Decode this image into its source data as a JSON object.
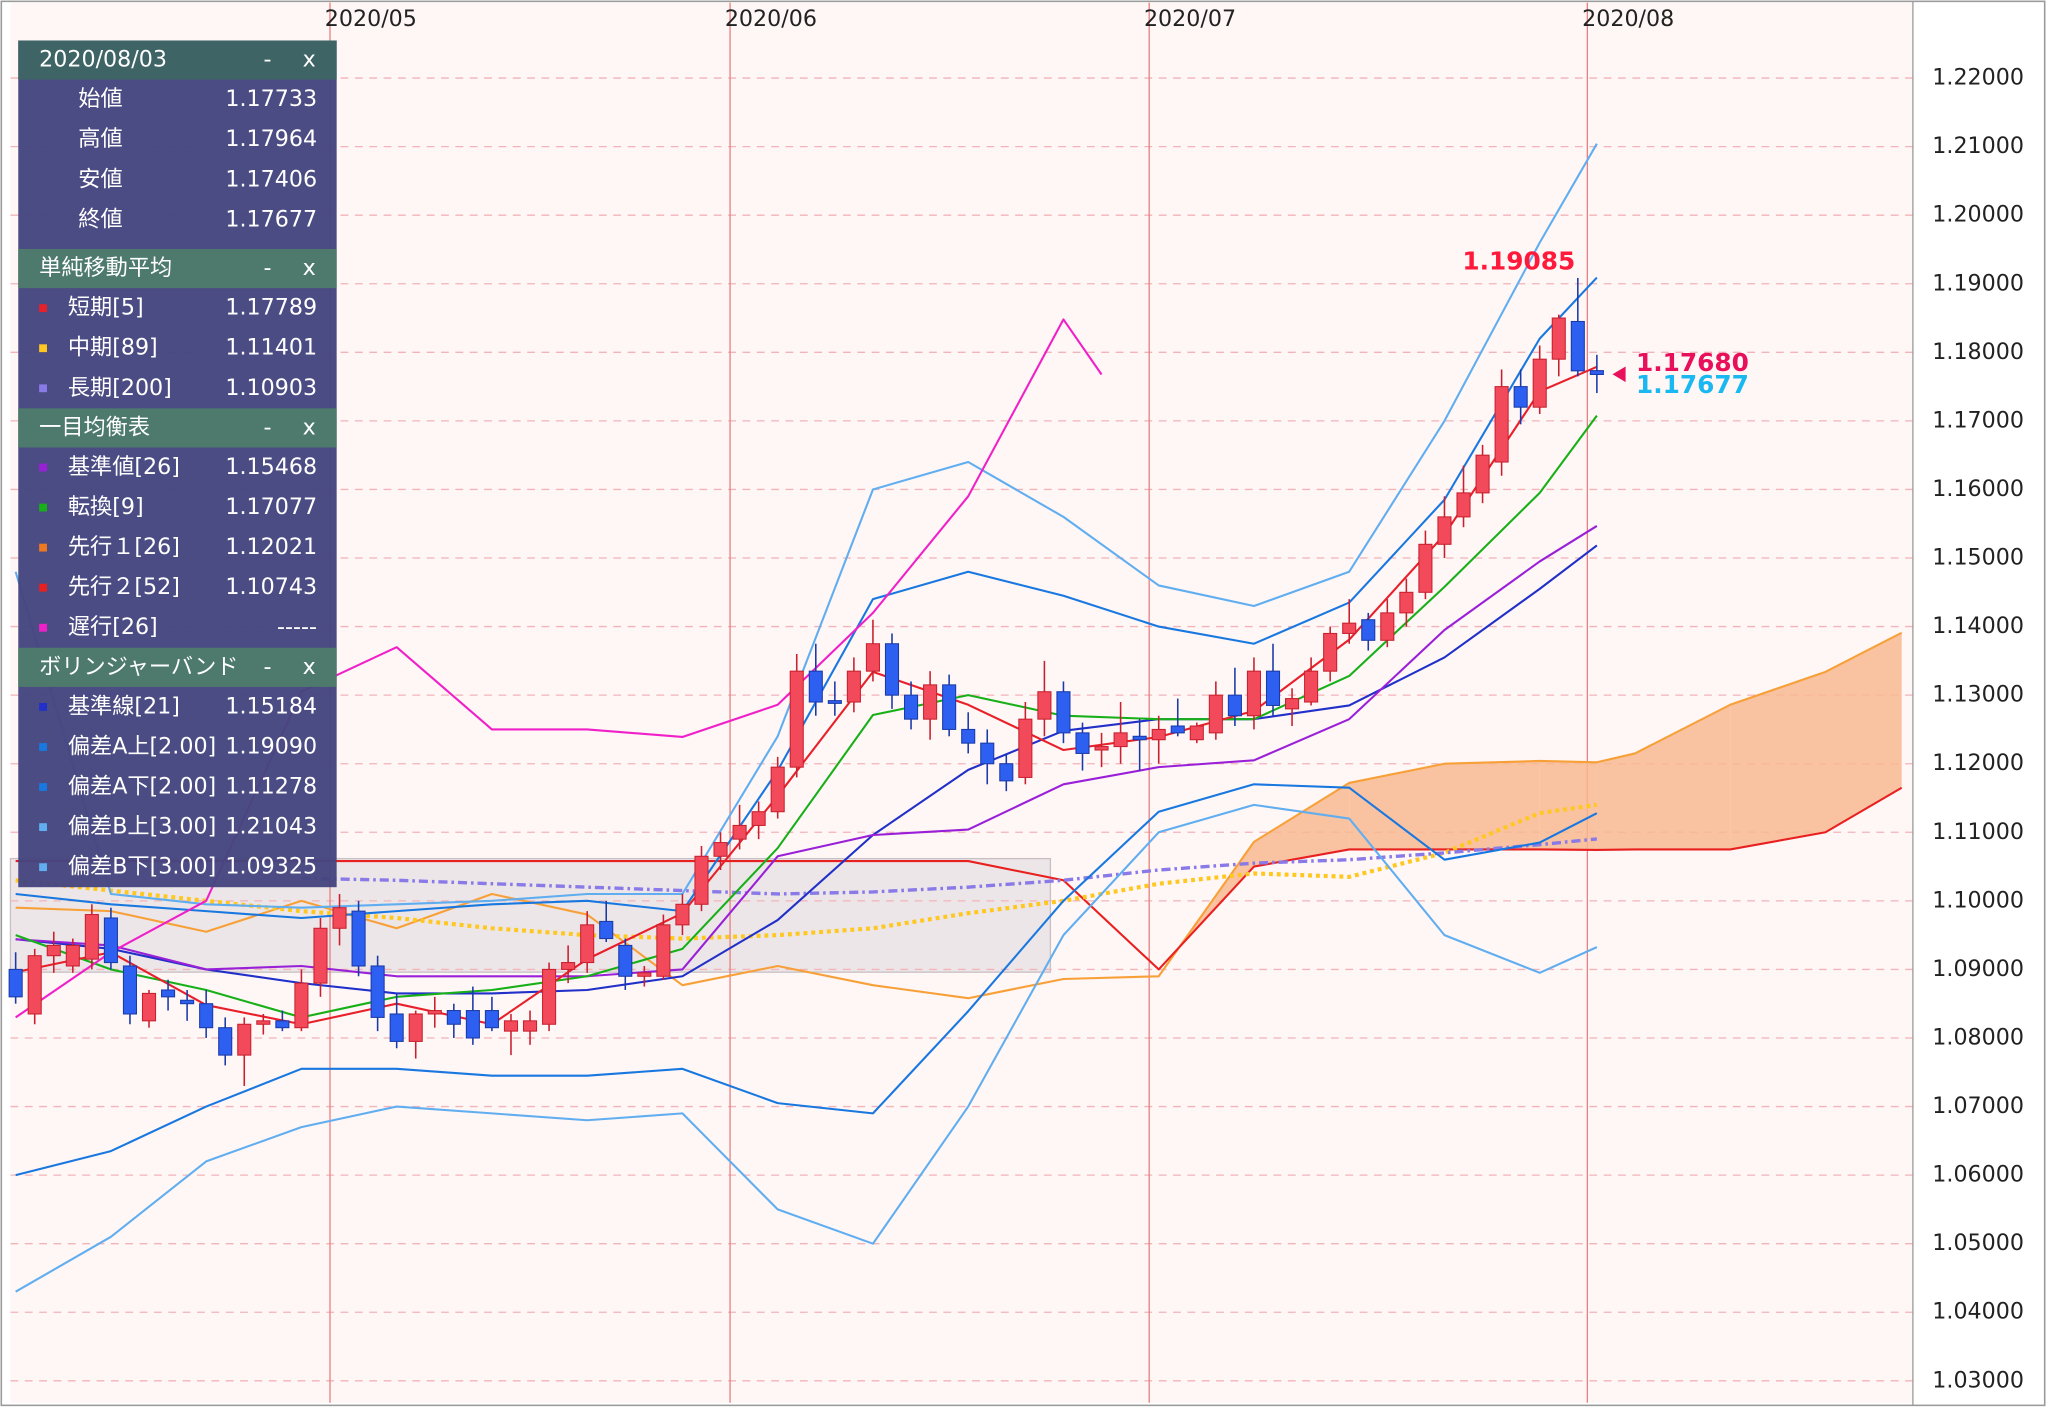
{
  "chart_data": {
    "type": "candlestick",
    "categories": [
      null,
      null,
      null,
      null,
      null,
      null,
      null,
      null,
      null,
      null,
      null,
      null,
      null,
      null,
      null,
      null,
      null,
      "2020/05",
      null,
      null,
      null,
      null,
      null,
      null,
      null,
      null,
      null,
      null,
      null,
      null,
      null,
      null,
      null,
      null,
      null,
      null,
      null,
      null,
      "2020/06",
      null,
      null,
      null,
      null,
      null,
      null,
      null,
      null,
      null,
      null,
      null,
      null,
      null,
      null,
      null,
      null,
      null,
      null,
      null,
      null,
      null,
      "2020/07",
      null,
      null,
      null,
      null,
      null,
      null,
      null,
      null,
      null,
      null,
      null,
      null,
      null,
      null,
      null,
      null,
      null,
      null,
      null,
      null,
      null,
      null,
      "2020/08"
    ],
    "open": [
      1.09,
      1.0835,
      1.092,
      1.0905,
      1.0915,
      1.0975,
      1.0905,
      1.0825,
      1.087,
      1.0855,
      1.085,
      1.0815,
      1.0775,
      1.082,
      1.0825,
      1.0815,
      1.088,
      1.096,
      1.0985,
      1.0905,
      1.0835,
      1.0795,
      1.0835,
      1.084,
      1.084,
      1.084,
      1.081,
      1.081,
      1.082,
      1.09,
      1.091,
      1.097,
      1.0935,
      1.089,
      1.089,
      1.0965,
      1.0995,
      1.1065,
      1.109,
      1.111,
      1.113,
      1.1195,
      1.1335,
      1.1292,
      1.129,
      1.1335,
      1.1375,
      1.13,
      1.1265,
      1.1315,
      1.125,
      1.123,
      1.12,
      1.118,
      1.1265,
      1.1305,
      1.1245,
      1.122,
      1.1225,
      1.124,
      1.1235,
      1.1255,
      1.1235,
      1.1245,
      1.13,
      1.127,
      1.1335,
      1.128,
      1.129,
      1.1335,
      1.139,
      1.141,
      1.138,
      1.142,
      1.145,
      1.152,
      1.156,
      1.1595,
      1.164,
      1.175,
      1.172,
      1.179,
      1.1845,
      1.17733
    ],
    "high": [
      1.0925,
      1.093,
      1.0955,
      1.0945,
      1.0995,
      1.099,
      1.092,
      1.087,
      1.0885,
      1.087,
      1.087,
      1.083,
      1.083,
      1.0835,
      1.084,
      1.09,
      1.0975,
      1.101,
      1.1,
      1.092,
      1.0865,
      1.084,
      1.086,
      1.085,
      1.0875,
      1.086,
      1.0835,
      1.084,
      1.091,
      1.0935,
      1.0985,
      1.1,
      1.0945,
      1.0905,
      1.098,
      1.101,
      1.108,
      1.11,
      1.114,
      1.1145,
      1.121,
      1.136,
      1.1375,
      1.132,
      1.1355,
      1.141,
      1.139,
      1.132,
      1.1335,
      1.133,
      1.1275,
      1.125,
      1.1215,
      1.129,
      1.135,
      1.132,
      1.126,
      1.1245,
      1.129,
      1.1265,
      1.127,
      1.1295,
      1.126,
      1.132,
      1.134,
      1.1355,
      1.1375,
      1.131,
      1.1355,
      1.14,
      1.144,
      1.142,
      1.144,
      1.147,
      1.154,
      1.159,
      1.1635,
      1.1665,
      1.1775,
      1.1775,
      1.181,
      1.1855,
      1.19085,
      1.17964
    ],
    "low": [
      1.085,
      1.082,
      1.0895,
      1.0895,
      1.09,
      1.09,
      1.082,
      1.0815,
      1.084,
      1.0825,
      1.08,
      1.076,
      1.073,
      1.0805,
      1.081,
      1.081,
      1.086,
      1.0935,
      1.089,
      1.081,
      1.0785,
      1.077,
      1.0815,
      1.08,
      1.079,
      1.081,
      1.0775,
      1.079,
      1.081,
      1.088,
      1.0895,
      1.094,
      1.087,
      1.0875,
      1.0885,
      1.095,
      1.0985,
      1.1045,
      1.1075,
      1.109,
      1.112,
      1.118,
      1.127,
      1.127,
      1.1275,
      1.132,
      1.128,
      1.125,
      1.1235,
      1.124,
      1.1215,
      1.117,
      1.116,
      1.117,
      1.124,
      1.123,
      1.119,
      1.1195,
      1.12,
      1.119,
      1.12,
      1.124,
      1.123,
      1.1235,
      1.1255,
      1.125,
      1.127,
      1.1255,
      1.1285,
      1.132,
      1.1375,
      1.1365,
      1.137,
      1.14,
      1.144,
      1.15,
      1.1545,
      1.158,
      1.162,
      1.1695,
      1.171,
      1.1765,
      1.1765,
      1.17406
    ],
    "close": [
      1.086,
      1.092,
      1.0935,
      1.0935,
      1.098,
      1.091,
      1.0835,
      1.0865,
      1.086,
      1.085,
      1.0815,
      1.0775,
      1.082,
      1.0825,
      1.0815,
      1.088,
      1.096,
      1.099,
      1.0905,
      1.083,
      1.0795,
      1.0835,
      1.084,
      1.082,
      1.08,
      1.0815,
      1.0825,
      1.0825,
      1.09,
      1.091,
      1.0965,
      1.0945,
      1.089,
      1.0895,
      1.0965,
      1.0995,
      1.1065,
      1.1085,
      1.111,
      1.113,
      1.1195,
      1.1335,
      1.129,
      1.1288,
      1.1335,
      1.1375,
      1.13,
      1.1265,
      1.1315,
      1.125,
      1.123,
      1.12,
      1.1175,
      1.1265,
      1.1305,
      1.1245,
      1.1215,
      1.1225,
      1.1245,
      1.1235,
      1.125,
      1.1245,
      1.1255,
      1.13,
      1.127,
      1.1335,
      1.1285,
      1.1295,
      1.1335,
      1.139,
      1.1405,
      1.138,
      1.142,
      1.145,
      1.152,
      1.156,
      1.1595,
      1.165,
      1.175,
      1.172,
      1.179,
      1.185,
      1.1773,
      1.17677
    ],
    "colors": {
      "up": "#f24a5a",
      "up_edge": "#c8202e",
      "down": "#2d5ff0",
      "down_edge": "#1a3aa8"
    },
    "overlays": [
      {
        "color": "#f8a038",
        "style": "fill-line",
        "x": [
          0,
          5,
          10,
          15,
          20,
          25,
          30,
          35,
          40,
          45,
          50,
          55,
          60,
          65,
          70,
          75,
          80,
          83,
          85,
          90,
          95,
          99
        ],
        "values": [
          1.099,
          1.0985,
          1.0955,
          1.1,
          1.096,
          1.101,
          1.098,
          1.0877,
          1.0905,
          1.0877,
          1.0858,
          1.0886,
          1.089,
          1.1086,
          1.1172,
          1.12,
          1.1204,
          1.12021,
          1.1215,
          1.1286,
          1.1334,
          1.1391
        ]
      },
      {
        "color": "#e82020",
        "style": "solid",
        "x": [
          0,
          5,
          10,
          15,
          20,
          25,
          30,
          35,
          40,
          45,
          50,
          55,
          60,
          65,
          70,
          75,
          80,
          83,
          85,
          90,
          95,
          99
        ],
        "values": [
          1.1058,
          1.1058,
          1.1058,
          1.1058,
          1.1058,
          1.1058,
          1.1058,
          1.1058,
          1.1058,
          1.1058,
          1.1058,
          1.103,
          1.09,
          1.105,
          1.1075,
          1.1075,
          1.1075,
          1.10743,
          1.1075,
          1.1075,
          1.11,
          1.1165
        ]
      },
      {
        "color": "#ffc820",
        "style": "dotted",
        "x": [
          0,
          5,
          10,
          15,
          20,
          25,
          30,
          35,
          40,
          45,
          50,
          55,
          60,
          65,
          70,
          75,
          80,
          83
        ],
        "values": [
          1.103,
          1.1015,
          1.1,
          1.0985,
          1.0975,
          1.096,
          1.095,
          1.0945,
          1.095,
          1.096,
          1.0982,
          1.1,
          1.1025,
          1.104,
          1.1035,
          1.107,
          1.1128,
          1.11401
        ]
      },
      {
        "color": "#8a7ae8",
        "style": "dashdot",
        "x": [
          15,
          20,
          25,
          30,
          35,
          40,
          45,
          50,
          55,
          60,
          65,
          70,
          75,
          80,
          83
        ],
        "values": [
          1.1033,
          1.103,
          1.1025,
          1.102,
          1.1015,
          1.101,
          1.1013,
          1.102,
          1.103,
          1.1045,
          1.1055,
          1.106,
          1.107,
          1.1082,
          1.10903
        ]
      },
      {
        "color": "#60aef0",
        "style": "solid",
        "x": [
          0,
          5,
          10,
          15,
          20,
          25,
          30,
          35,
          40,
          45,
          50,
          55,
          60,
          65,
          70,
          75,
          80,
          83
        ],
        "values": [
          1.148,
          1.101,
          1.0995,
          1.099,
          1.0995,
          1.1,
          1.101,
          1.101,
          1.124,
          1.16,
          1.164,
          1.156,
          1.146,
          1.143,
          1.148,
          1.17,
          1.196,
          1.21043
        ]
      },
      {
        "color": "#60aef0",
        "style": "solid",
        "x": [
          0,
          5,
          10,
          15,
          20,
          25,
          30,
          35,
          40,
          45,
          50,
          55,
          60,
          65,
          70,
          75,
          80,
          83
        ],
        "values": [
          1.043,
          1.051,
          1.062,
          1.067,
          1.07,
          1.069,
          1.068,
          1.069,
          1.055,
          1.05,
          1.07,
          1.095,
          1.11,
          1.114,
          1.112,
          1.095,
          1.0895,
          1.09325
        ]
      },
      {
        "color": "#1878e0",
        "style": "solid",
        "x": [
          0,
          5,
          10,
          15,
          20,
          25,
          30,
          35,
          40,
          45,
          50,
          55,
          60,
          65,
          70,
          75,
          80,
          83
        ],
        "values": [
          1.101,
          1.0995,
          1.0985,
          1.0975,
          1.0985,
          1.0995,
          1.1,
          1.0985,
          1.119,
          1.144,
          1.148,
          1.1445,
          1.14,
          1.1375,
          1.1435,
          1.1585,
          1.182,
          1.1909
        ]
      },
      {
        "color": "#1878e0",
        "style": "solid",
        "x": [
          0,
          5,
          10,
          15,
          20,
          25,
          30,
          35,
          40,
          45,
          50,
          55,
          60,
          65,
          70,
          75,
          80,
          83
        ],
        "values": [
          1.06,
          1.0635,
          1.07,
          1.0755,
          1.0755,
          1.0745,
          1.0745,
          1.0755,
          1.0705,
          1.069,
          1.0839,
          1.1,
          1.113,
          1.117,
          1.1165,
          1.106,
          1.1085,
          1.11278
        ]
      },
      {
        "color": "#2030c8",
        "style": "solid",
        "x": [
          0,
          5,
          10,
          15,
          20,
          25,
          30,
          35,
          40,
          45,
          50,
          55,
          60,
          65,
          70,
          75,
          80,
          83
        ],
        "values": [
          1.0944,
          1.093,
          1.09,
          1.088,
          1.0865,
          1.0865,
          1.087,
          1.089,
          1.0972,
          1.1096,
          1.1191,
          1.1248,
          1.1265,
          1.1265,
          1.1285,
          1.1355,
          1.1455,
          1.15184
        ]
      },
      {
        "color": "#9a20d8",
        "style": "solid",
        "x": [
          0,
          5,
          10,
          15,
          20,
          25,
          30,
          35,
          40,
          45,
          50,
          55,
          60,
          65,
          70,
          75,
          80,
          83
        ],
        "values": [
          1.0944,
          1.0935,
          1.09,
          1.0905,
          1.089,
          1.089,
          1.089,
          1.09,
          1.1065,
          1.1096,
          1.1104,
          1.117,
          1.1195,
          1.1205,
          1.1265,
          1.1395,
          1.1495,
          1.15468
        ]
      },
      {
        "color": "#18b018",
        "style": "solid",
        "x": [
          0,
          5,
          10,
          15,
          20,
          25,
          30,
          35,
          40,
          45,
          50,
          55,
          60,
          65,
          70,
          75,
          80,
          83
        ],
        "values": [
          1.095,
          1.09,
          1.087,
          1.083,
          1.086,
          1.087,
          1.089,
          1.093,
          1.1077,
          1.1271,
          1.13,
          1.127,
          1.1265,
          1.1265,
          1.1328,
          1.1458,
          1.1595,
          1.17077
        ]
      },
      {
        "color": "#f020c8",
        "style": "solid",
        "x": [
          0,
          5,
          10,
          15,
          20,
          25,
          30,
          35,
          40,
          45,
          50,
          55,
          57
        ],
        "values": [
          1.083,
          1.0925,
          1.1,
          1.1305,
          1.137,
          1.125,
          1.125,
          1.1239,
          1.1286,
          1.142,
          1.159,
          1.1848,
          1.17677
        ]
      },
      {
        "color": "#e8202a",
        "style": "solid",
        "x": [
          0,
          5,
          10,
          15,
          20,
          25,
          30,
          35,
          40,
          45,
          50,
          55,
          60,
          65,
          70,
          75,
          80,
          83
        ],
        "values": [
          1.0896,
          1.0925,
          1.0848,
          1.082,
          1.085,
          1.082,
          1.0915,
          1.0982,
          1.1153,
          1.1334,
          1.1286,
          1.122,
          1.1239,
          1.1277,
          1.1381,
          1.1534,
          1.1743,
          1.17789
        ]
      }
    ],
    "cloud": {
      "span_a": 0,
      "span_b": 1,
      "color": "#f8b890"
    },
    "annotations": [
      {
        "value": 1.19085,
        "label": "1.19085",
        "color": "#ff1a3c"
      },
      {
        "value": 1.1768,
        "label": "1.17680",
        "color": "#e8105a"
      },
      {
        "value": 1.17677,
        "label": "1.17677",
        "color": "#1ab8f0"
      }
    ],
    "ylim": [
      1.0268,
      1.231
    ],
    "yticks": [
      {
        "value": 1.03,
        "label": "1.03000"
      },
      {
        "value": 1.04,
        "label": "1.04000"
      },
      {
        "value": 1.05,
        "label": "1.05000"
      },
      {
        "value": 1.06,
        "label": "1.06000"
      },
      {
        "value": 1.07,
        "label": "1.07000"
      },
      {
        "value": 1.08,
        "label": "1.08000"
      },
      {
        "value": 1.09,
        "label": "1.09000"
      },
      {
        "value": 1.1,
        "label": "1.10000"
      },
      {
        "value": 1.11,
        "label": "1.11000"
      },
      {
        "value": 1.12,
        "label": "1.12000"
      },
      {
        "value": 1.13,
        "label": "1.13000"
      },
      {
        "value": 1.14,
        "label": "1.14000"
      },
      {
        "value": 1.15,
        "label": "1.15000"
      },
      {
        "value": 1.16,
        "label": "1.16000"
      },
      {
        "value": 1.17,
        "label": "1.17000"
      },
      {
        "value": 1.18,
        "label": "1.18000"
      },
      {
        "value": 1.19,
        "label": "1.19000"
      },
      {
        "value": 1.2,
        "label": "1.20000"
      },
      {
        "value": 1.21,
        "label": "1.21000"
      },
      {
        "value": 1.22,
        "label": "1.22000"
      }
    ],
    "grid": true
  },
  "info_panel": {
    "controls": [
      "-",
      "x"
    ],
    "sections": [
      {
        "title": "2020/08/03",
        "rows": [
          {
            "label": "始値",
            "value": "1.17733"
          },
          {
            "label": "高値",
            "value": "1.17964"
          },
          {
            "label": "安値",
            "value": "1.17406"
          },
          {
            "label": "終値",
            "value": "1.17677"
          }
        ]
      },
      {
        "title": "単純移動平均",
        "rows": [
          {
            "label": "短期[5]",
            "value": "1.17789",
            "color": "#e8202a"
          },
          {
            "label": "中期[89]",
            "value": "1.11401",
            "color": "#ffc820"
          },
          {
            "label": "長期[200]",
            "value": "1.10903",
            "color": "#8a7ae8"
          }
        ]
      },
      {
        "title": "一目均衡表",
        "rows": [
          {
            "label": "基準値[26]",
            "value": "1.15468",
            "color": "#9a20d8"
          },
          {
            "label": "転換[9]",
            "value": "1.17077",
            "color": "#18b018"
          },
          {
            "label": "先行１[26]",
            "value": "1.12021",
            "color": "#f07820"
          },
          {
            "label": "先行２[52]",
            "value": "1.10743",
            "color": "#e82020"
          },
          {
            "label": "遅行[26]",
            "value": "-----",
            "color": "#f020c8"
          }
        ]
      },
      {
        "title": "ボリンジャーバンド",
        "rows": [
          {
            "label": "基準線[21]",
            "value": "1.15184",
            "color": "#2030c8"
          },
          {
            "label": "偏差A上[2.00]",
            "value": "1.19090",
            "color": "#1878e0"
          },
          {
            "label": "偏差A下[2.00]",
            "value": "1.11278",
            "color": "#1878e0"
          },
          {
            "label": "偏差B上[3.00]",
            "value": "1.21043",
            "color": "#60aef0"
          },
          {
            "label": "偏差B下[3.00]",
            "value": "1.09325",
            "color": "#60aef0"
          }
        ]
      }
    ]
  }
}
